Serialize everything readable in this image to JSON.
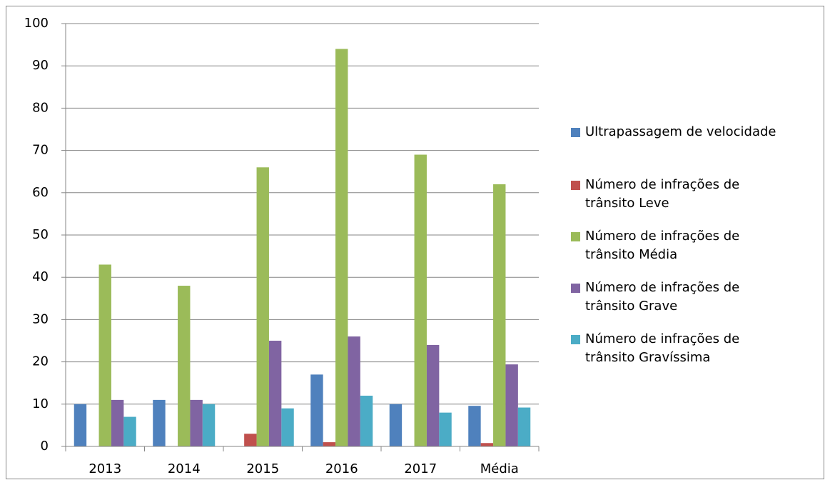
{
  "chart_data": {
    "type": "bar",
    "categories": [
      "2013",
      "2014",
      "2015",
      "2016",
      "2017",
      "Média"
    ],
    "series": [
      {
        "name": "Ultrapassagem de velocidade",
        "color": "#4f81bd",
        "values": [
          10,
          11,
          0,
          17,
          10,
          9.6
        ]
      },
      {
        "name": "Número de infrações de trânsito Leve",
        "color": "#c0504d",
        "values": [
          0,
          0,
          3,
          1,
          0,
          0.8
        ]
      },
      {
        "name": "Número de infrações de trânsito Média",
        "color": "#9bbb59",
        "values": [
          43,
          38,
          66,
          94,
          69,
          62
        ]
      },
      {
        "name": "Número de infrações de trânsito Grave",
        "color": "#8064a2",
        "values": [
          11,
          11,
          25,
          26,
          24,
          19.4
        ]
      },
      {
        "name": "Número de infrações de trânsito Gravíssima",
        "color": "#4bacc6",
        "values": [
          7,
          10,
          9,
          12,
          8,
          9.2
        ]
      }
    ],
    "ylim": [
      0,
      100
    ],
    "yticks": [
      0,
      10,
      20,
      30,
      40,
      50,
      60,
      70,
      80,
      90,
      100
    ],
    "grid": true,
    "legend": "right"
  }
}
